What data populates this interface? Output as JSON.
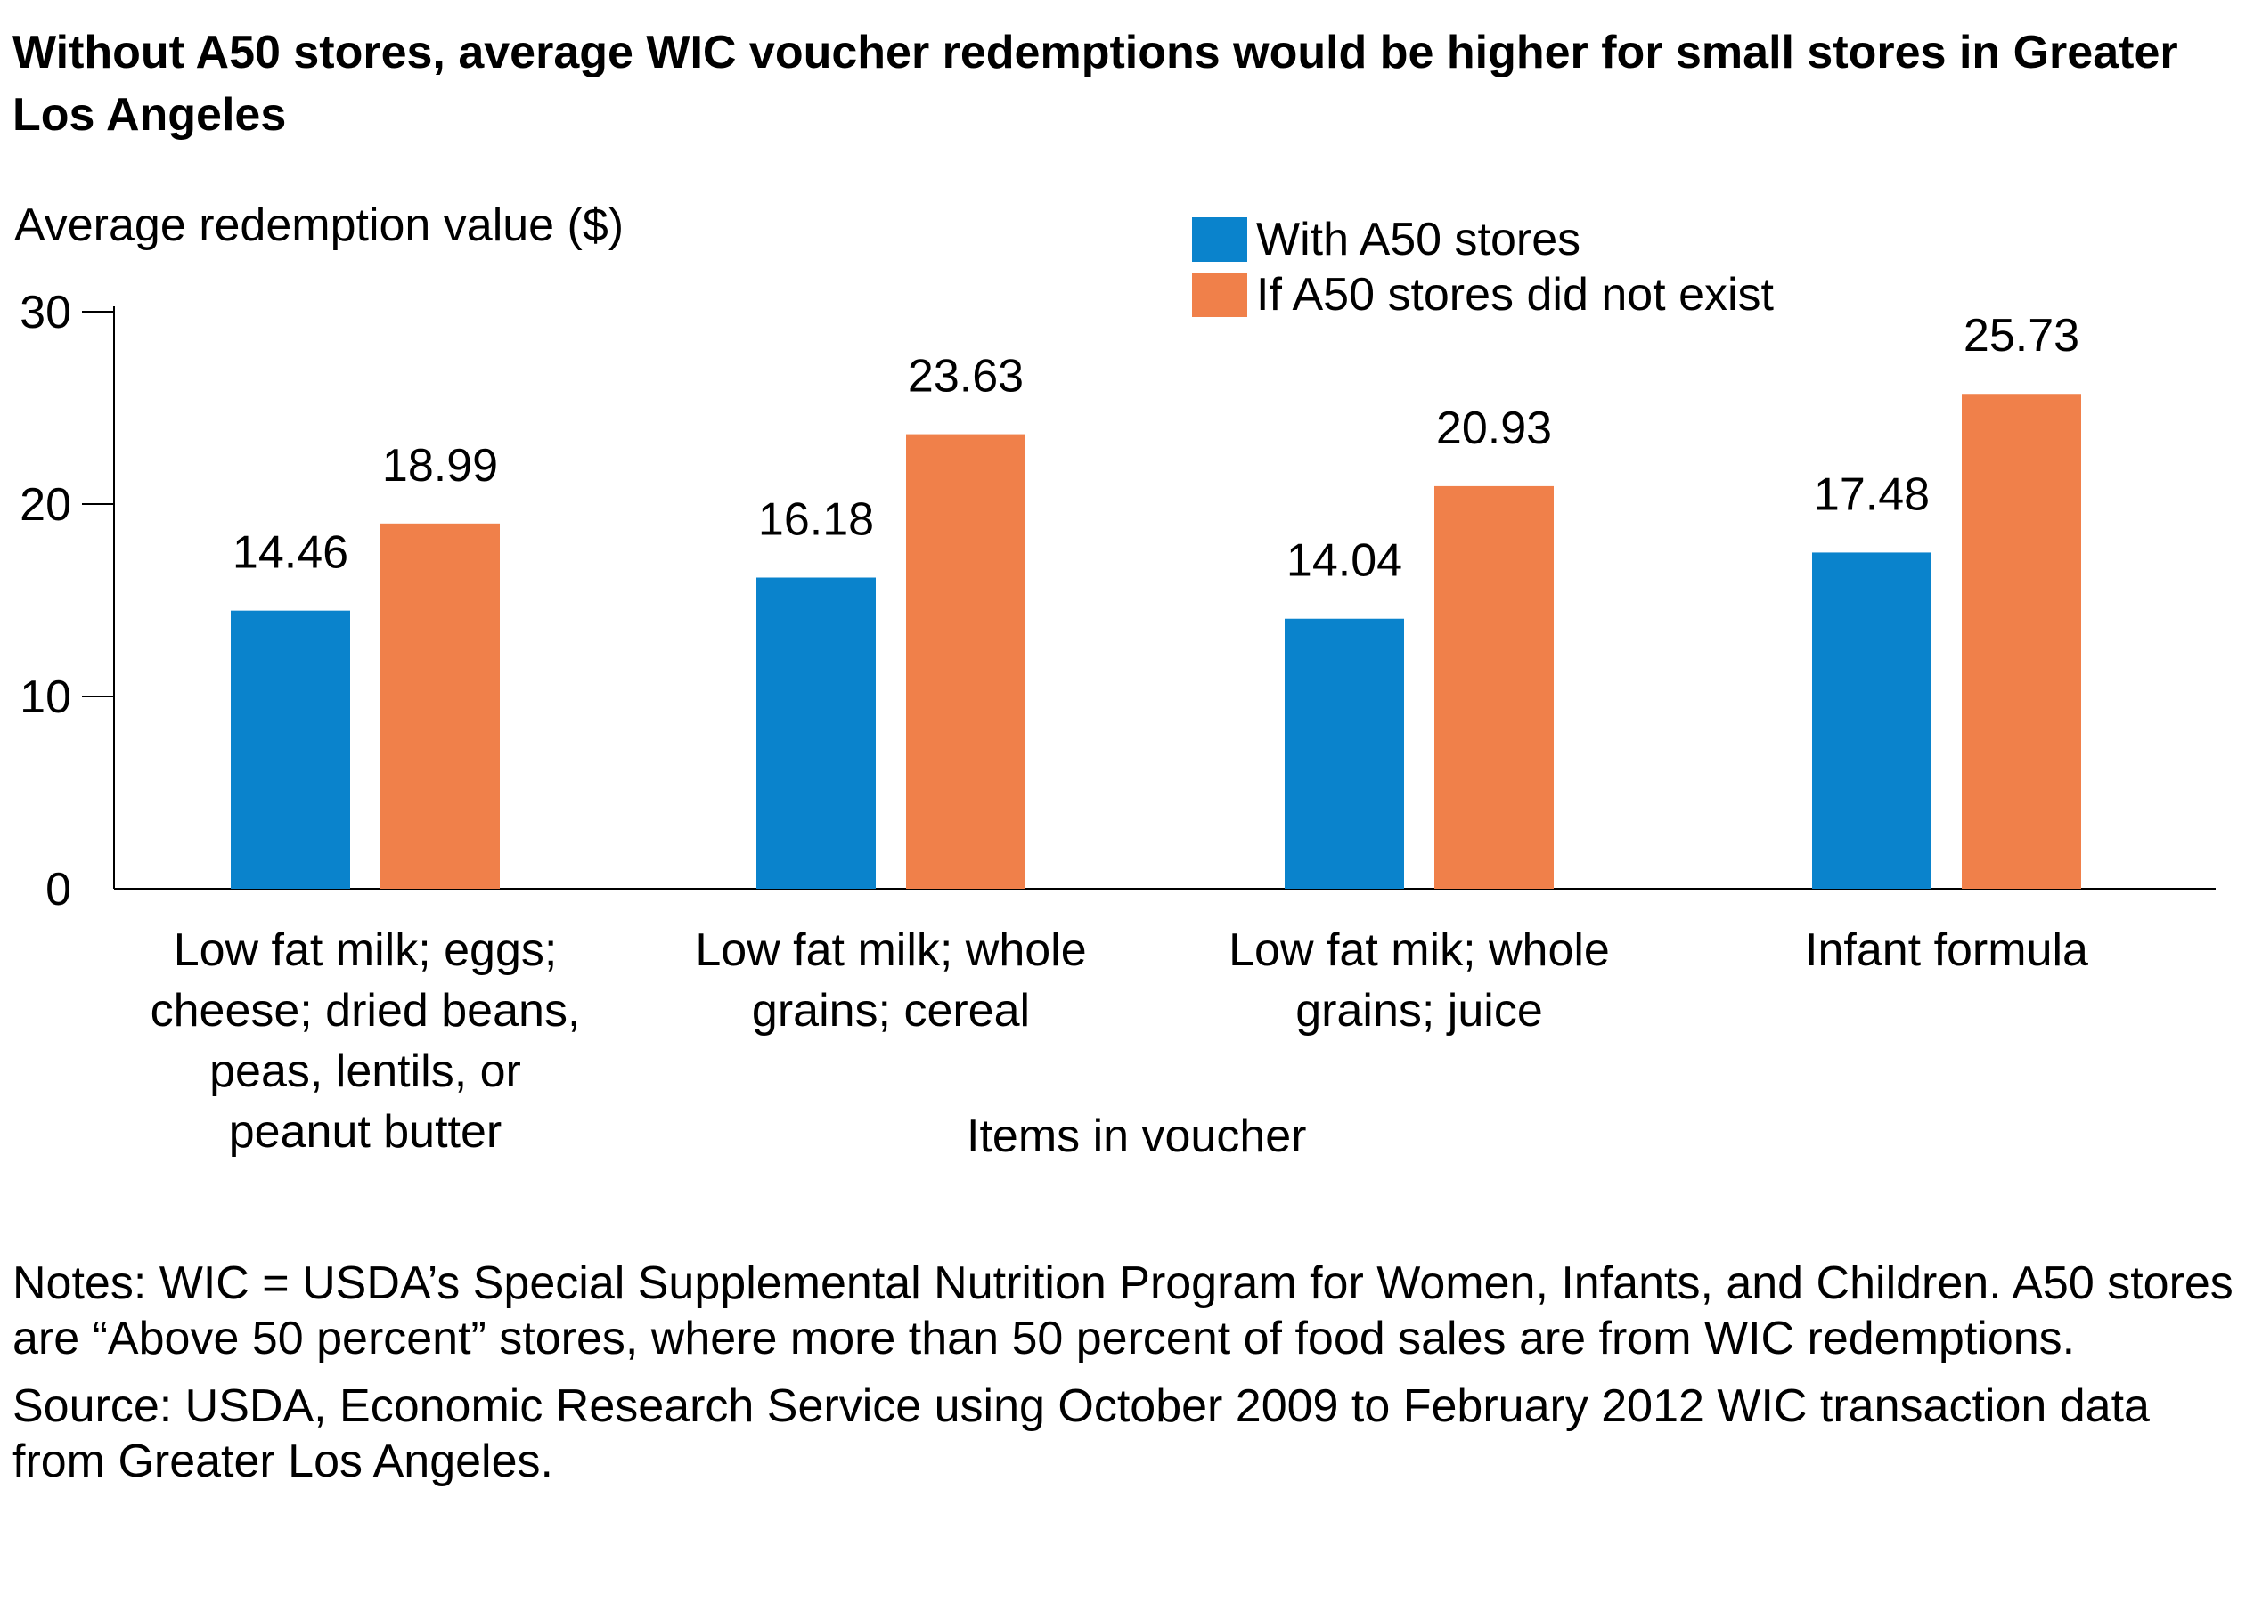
{
  "title": "Without A50 stores, average WIC voucher redemptions would be higher for small stores in Greater Los Angeles",
  "colors": {
    "with": "#0a83cc",
    "without": "#f0804a"
  },
  "chart_data": {
    "type": "bar",
    "ylabel": "Average redemption value ($)",
    "xlabel": "Items in voucher",
    "ylim": [
      0,
      30
    ],
    "yticks": [
      0,
      10,
      20,
      30
    ],
    "grid": false,
    "legend_position": "top-right",
    "categories": [
      [
        "Low fat milk; eggs;",
        "cheese; dried beans,",
        "peas, lentils, or",
        "peanut butter"
      ],
      [
        "Low fat milk; whole",
        "grains; cereal"
      ],
      [
        "Low fat mik; whole",
        "grains; juice"
      ],
      [
        "Infant formula"
      ]
    ],
    "series": [
      {
        "name": "With A50 stores",
        "values": [
          14.46,
          16.18,
          14.04,
          17.48
        ],
        "labels": [
          "14.46",
          "16.18",
          "14.04",
          "17.48"
        ]
      },
      {
        "name": "If A50 stores did not exist",
        "values": [
          18.99,
          23.63,
          20.93,
          25.73
        ],
        "labels": [
          "18.99",
          "23.63",
          "20.93",
          "25.73"
        ]
      }
    ]
  },
  "notes": {
    "line1": "Notes: WIC = USDA’s Special Supplemental Nutrition Program for Women, Infants, and Children. A50 stores are “Above 50 percent” stores, where more than 50 percent of food sales are from WIC redemptions.",
    "line2": "Source: USDA, Economic Research Service using October 2009 to February 2012 WIC transaction data from Greater Los Angeles."
  }
}
